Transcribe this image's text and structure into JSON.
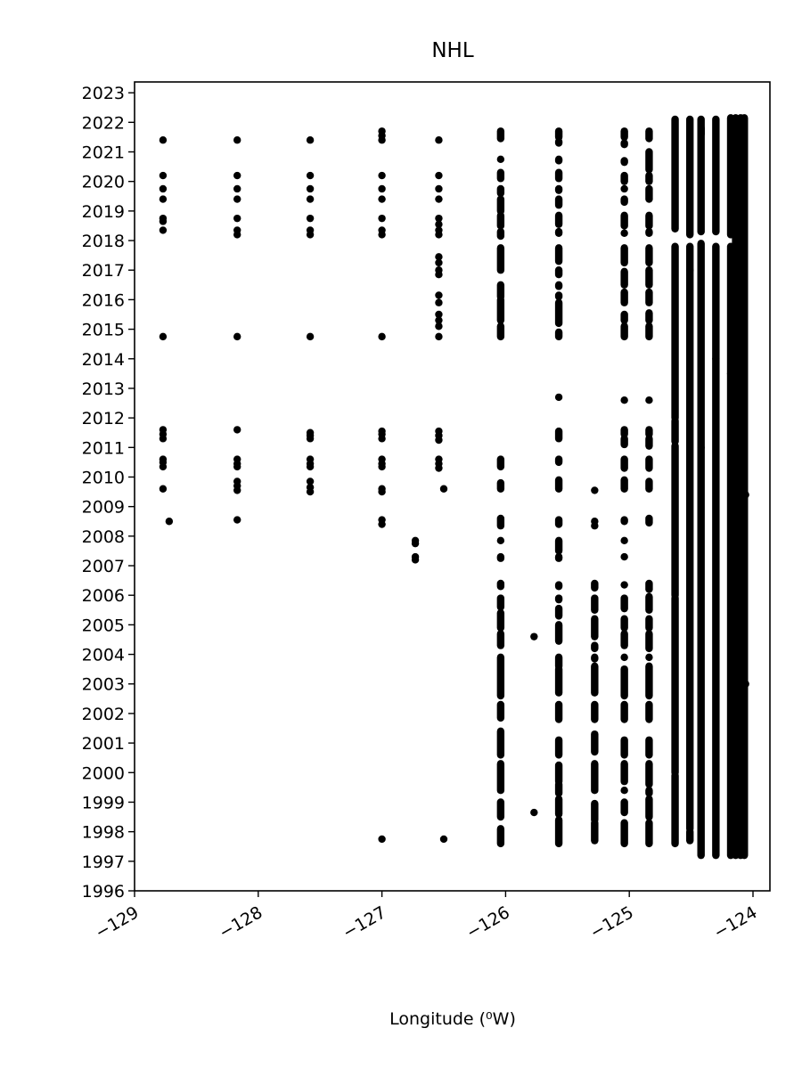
{
  "chart_data": {
    "type": "scatter",
    "title": "NHL",
    "xlabel": "Longitude (⁰W)",
    "ylabel": "",
    "xlim": [
      -129,
      -123.9
    ],
    "ylim": [
      1996,
      2023.3
    ],
    "grid": false,
    "marker_color": "#000000",
    "x_ticks": [
      {
        "value": -129,
        "label": "−129"
      },
      {
        "value": -128,
        "label": "−128"
      },
      {
        "value": -127,
        "label": "−127"
      },
      {
        "value": -126,
        "label": "−126"
      },
      {
        "value": -125,
        "label": "−125"
      },
      {
        "value": -124,
        "label": "−124"
      }
    ],
    "y_ticks": [
      {
        "value": 1996,
        "label": "1996"
      },
      {
        "value": 1997,
        "label": "1997"
      },
      {
        "value": 1998,
        "label": "1998"
      },
      {
        "value": 1999,
        "label": "1999"
      },
      {
        "value": 2000,
        "label": "2000"
      },
      {
        "value": 2001,
        "label": "2001"
      },
      {
        "value": 2002,
        "label": "2002"
      },
      {
        "value": 2003,
        "label": "2003"
      },
      {
        "value": 2004,
        "label": "2004"
      },
      {
        "value": 2005,
        "label": "2005"
      },
      {
        "value": 2006,
        "label": "2006"
      },
      {
        "value": 2007,
        "label": "2007"
      },
      {
        "value": 2008,
        "label": "2008"
      },
      {
        "value": 2009,
        "label": "2009"
      },
      {
        "value": 2010,
        "label": "2010"
      },
      {
        "value": 2011,
        "label": "2011"
      },
      {
        "value": 2012,
        "label": "2012"
      },
      {
        "value": 2013,
        "label": "2013"
      },
      {
        "value": 2014,
        "label": "2014"
      },
      {
        "value": 2015,
        "label": "2015"
      },
      {
        "value": 2016,
        "label": "2016"
      },
      {
        "value": 2017,
        "label": "2017"
      },
      {
        "value": 2018,
        "label": "2018"
      },
      {
        "value": 2019,
        "label": "2019"
      },
      {
        "value": 2020,
        "label": "2020"
      },
      {
        "value": 2021,
        "label": "2021"
      },
      {
        "value": 2022,
        "label": "2022"
      },
      {
        "value": 2023,
        "label": "2023"
      }
    ],
    "series": [
      {
        "x": -128.77,
        "y": [
          2021.4,
          2020.2,
          2019.75,
          2019.4,
          2018.75,
          2018.65,
          2018.35,
          2014.75,
          2011.6,
          2011.45,
          2011.3,
          2010.6,
          2010.5,
          2010.35,
          2009.6
        ]
      },
      {
        "x": -128.72,
        "y": [
          2008.5
        ]
      },
      {
        "x": -128.17,
        "y": [
          2021.4,
          2020.2,
          2019.75,
          2019.4,
          2018.75,
          2018.35,
          2018.2,
          2014.75,
          2011.6,
          2010.6,
          2010.45,
          2010.35,
          2009.85,
          2009.7,
          2009.55,
          2008.55
        ]
      },
      {
        "x": -127.58,
        "y": [
          2021.4,
          2020.2,
          2019.75,
          2019.4,
          2018.75,
          2018.35,
          2018.2,
          2014.75,
          2011.5,
          2011.4,
          2011.3,
          2010.6,
          2010.45,
          2010.35,
          2009.85,
          2009.65,
          2009.5
        ]
      },
      {
        "x": -127.0,
        "y": [
          2021.7,
          2021.55,
          2021.4,
          2020.2,
          2019.75,
          2019.4,
          2018.75,
          2018.35,
          2018.2,
          2014.75,
          2011.55,
          2011.45,
          2011.3,
          2010.6,
          2010.45,
          2010.35,
          2009.6,
          2009.5,
          2008.55,
          2008.4,
          1997.75
        ]
      },
      {
        "x": -126.73,
        "y": [
          2007.85,
          2007.75,
          2007.3,
          2007.2
        ]
      },
      {
        "x": -126.54,
        "y": [
          2021.4,
          2020.2,
          2019.75,
          2019.4,
          2018.75,
          2018.55,
          2018.35,
          2018.2,
          2017.45,
          2017.25,
          2017.0,
          2016.85,
          2016.15,
          2015.9,
          2015.5,
          2015.3,
          2015.1,
          2014.75,
          2011.55,
          2011.4,
          2011.25,
          2010.6,
          2010.45,
          2010.3
        ]
      },
      {
        "x": -126.5,
        "y": [
          2009.6,
          1997.75
        ]
      },
      {
        "x": -125.77,
        "y": [
          2004.6,
          1998.65
        ]
      },
      {
        "x": -125.28,
        "y": [
          2009.55,
          2008.5,
          2008.35
        ]
      }
    ],
    "dense_columns": [
      {
        "x": -126.04,
        "y_ranges": [
          [
            2021.45,
            2021.7
          ],
          [
            2020.75,
            2020.75
          ],
          [
            2020.1,
            2020.3
          ],
          [
            2019.6,
            2019.75
          ],
          [
            2019.0,
            2019.4
          ],
          [
            2018.5,
            2018.85
          ],
          [
            2018.15,
            2018.3
          ],
          [
            2017.0,
            2017.75
          ],
          [
            2016.1,
            2016.5
          ],
          [
            2015.3,
            2016.0
          ],
          [
            2014.75,
            2015.1
          ],
          [
            2010.35,
            2010.6
          ],
          [
            2009.6,
            2009.8
          ],
          [
            2008.35,
            2008.6
          ],
          [
            2007.85,
            2007.85
          ],
          [
            2007.25,
            2007.3
          ],
          [
            2006.3,
            2006.4
          ],
          [
            2005.6,
            2005.9
          ],
          [
            2004.9,
            2005.4
          ],
          [
            2004.3,
            2004.7
          ],
          [
            2002.6,
            2003.9
          ],
          [
            2001.85,
            2002.3
          ],
          [
            2000.6,
            2001.4
          ],
          [
            1999.4,
            2000.3
          ],
          [
            1998.5,
            1999.0
          ],
          [
            1997.6,
            1998.1
          ]
        ]
      },
      {
        "x": -125.57,
        "y": [],
        "y_ranges": [
          [
            2021.5,
            2021.7
          ],
          [
            2021.3,
            2021.35
          ],
          [
            2020.7,
            2020.75
          ],
          [
            2020.1,
            2020.3
          ],
          [
            2019.7,
            2019.75
          ],
          [
            2019.2,
            2019.4
          ],
          [
            2018.55,
            2018.85
          ],
          [
            2018.25,
            2018.3
          ],
          [
            2017.3,
            2017.75
          ],
          [
            2016.85,
            2017.0
          ],
          [
            2016.45,
            2016.5
          ],
          [
            2016.1,
            2016.15
          ],
          [
            2015.2,
            2015.9
          ],
          [
            2014.75,
            2014.9
          ],
          [
            2012.7,
            2012.7
          ],
          [
            2011.3,
            2011.55
          ],
          [
            2010.5,
            2010.6
          ],
          [
            2009.6,
            2009.9
          ],
          [
            2008.4,
            2008.55
          ],
          [
            2007.5,
            2007.85
          ],
          [
            2007.25,
            2007.3
          ],
          [
            2006.3,
            2006.35
          ],
          [
            2005.85,
            2005.9
          ],
          [
            2005.3,
            2005.55
          ],
          [
            2004.45,
            2005.0
          ],
          [
            2003.6,
            2003.9
          ],
          [
            2002.7,
            2003.5
          ],
          [
            2001.8,
            2002.3
          ],
          [
            2000.6,
            2001.1
          ],
          [
            1999.7,
            2000.25
          ],
          [
            1999.3,
            1999.6
          ],
          [
            1998.6,
            1999.1
          ],
          [
            1997.6,
            1998.4
          ]
        ]
      },
      {
        "x": -125.28,
        "y_ranges": [
          [
            2006.25,
            2006.4
          ],
          [
            2005.5,
            2005.9
          ],
          [
            2004.6,
            2005.2
          ],
          [
            2004.2,
            2004.3
          ],
          [
            2003.85,
            2003.9
          ],
          [
            2002.7,
            2003.6
          ],
          [
            2001.8,
            2002.3
          ],
          [
            2000.7,
            2001.3
          ],
          [
            1999.4,
            2000.3
          ],
          [
            1998.4,
            1998.95
          ],
          [
            1997.7,
            1998.3
          ]
        ]
      },
      {
        "x": -125.04,
        "y_ranges": [
          [
            2021.5,
            2021.7
          ],
          [
            2021.25,
            2021.3
          ],
          [
            2020.65,
            2020.7
          ],
          [
            2020.0,
            2020.2
          ],
          [
            2019.75,
            2019.75
          ],
          [
            2019.3,
            2019.4
          ],
          [
            2018.5,
            2018.85
          ],
          [
            2018.25,
            2018.25
          ],
          [
            2017.25,
            2017.75
          ],
          [
            2016.5,
            2016.95
          ],
          [
            2015.9,
            2016.25
          ],
          [
            2015.3,
            2015.5
          ],
          [
            2014.75,
            2015.1
          ],
          [
            2012.6,
            2012.6
          ],
          [
            2011.45,
            2011.6
          ],
          [
            2011.1,
            2011.3
          ],
          [
            2010.3,
            2010.6
          ],
          [
            2009.6,
            2009.9
          ],
          [
            2008.5,
            2008.55
          ],
          [
            2007.85,
            2007.85
          ],
          [
            2007.3,
            2007.3
          ],
          [
            2006.35,
            2006.35
          ],
          [
            2005.55,
            2005.9
          ],
          [
            2004.9,
            2005.2
          ],
          [
            2004.3,
            2004.7
          ],
          [
            2003.9,
            2003.9
          ],
          [
            2002.6,
            2003.5
          ],
          [
            2001.8,
            2002.3
          ],
          [
            2000.6,
            2001.1
          ],
          [
            1999.7,
            2000.3
          ],
          [
            1999.4,
            1999.4
          ],
          [
            1998.65,
            1999.0
          ],
          [
            1997.6,
            1998.3
          ]
        ]
      },
      {
        "x": -124.84,
        "y_ranges": [
          [
            2021.45,
            2021.7
          ],
          [
            2020.4,
            2021.0
          ],
          [
            2020.0,
            2020.2
          ],
          [
            2019.4,
            2019.75
          ],
          [
            2018.5,
            2018.85
          ],
          [
            2018.25,
            2018.3
          ],
          [
            2017.25,
            2017.75
          ],
          [
            2016.5,
            2017.0
          ],
          [
            2015.9,
            2016.25
          ],
          [
            2015.3,
            2015.55
          ],
          [
            2014.75,
            2015.1
          ],
          [
            2012.6,
            2012.6
          ],
          [
            2011.45,
            2011.6
          ],
          [
            2011.05,
            2011.3
          ],
          [
            2010.3,
            2010.6
          ],
          [
            2009.6,
            2009.85
          ],
          [
            2008.45,
            2008.6
          ],
          [
            2006.2,
            2006.4
          ],
          [
            2005.5,
            2005.95
          ],
          [
            2004.9,
            2005.2
          ],
          [
            2004.2,
            2004.7
          ],
          [
            2003.9,
            2003.9
          ],
          [
            2002.6,
            2003.6
          ],
          [
            2001.8,
            2002.3
          ],
          [
            2000.6,
            2001.1
          ],
          [
            1999.6,
            2000.3
          ],
          [
            1999.3,
            1999.4
          ],
          [
            1998.5,
            1999.1
          ],
          [
            1997.6,
            1998.3
          ]
        ]
      },
      {
        "x": -124.63,
        "y_ranges": [
          [
            2018.4,
            2022.1
          ],
          [
            2012.0,
            2017.8
          ],
          [
            2011.2,
            2011.9
          ],
          [
            2006.0,
            2011.05
          ],
          [
            2000.0,
            2005.9
          ],
          [
            1997.6,
            1999.9
          ]
        ]
      },
      {
        "x": -124.51,
        "y_ranges": [
          [
            2018.2,
            2022.1
          ],
          [
            2017.0,
            2017.8
          ],
          [
            1998.1,
            2017.0
          ],
          [
            1997.7,
            1998.0
          ]
        ]
      },
      {
        "x": -124.42,
        "y_ranges": [
          [
            2021.6,
            2022.1
          ],
          [
            2018.3,
            2021.8
          ],
          [
            2011.0,
            2017.9
          ],
          [
            1997.2,
            2011.0
          ]
        ]
      },
      {
        "x": -124.3,
        "y_ranges": [
          [
            2018.3,
            2022.1
          ],
          [
            2014.0,
            2017.8
          ],
          [
            1997.2,
            2014.0
          ]
        ]
      },
      {
        "x": -124.18,
        "y_ranges": [
          [
            2018.2,
            2022.15
          ],
          [
            2013.5,
            2017.8
          ],
          [
            1997.2,
            2013.5
          ]
        ]
      },
      {
        "x": -124.14,
        "y_ranges": [
          [
            1997.2,
            2022.15
          ]
        ]
      },
      {
        "x": -124.1,
        "y_ranges": [
          [
            1997.2,
            2022.15
          ]
        ]
      },
      {
        "x": -124.07,
        "y_ranges": [
          [
            1997.2,
            2022.15
          ]
        ]
      }
    ],
    "extra_points": [
      {
        "x": -124.06,
        "y": 2009.4
      },
      {
        "x": -124.06,
        "y": 2003.0
      }
    ]
  }
}
